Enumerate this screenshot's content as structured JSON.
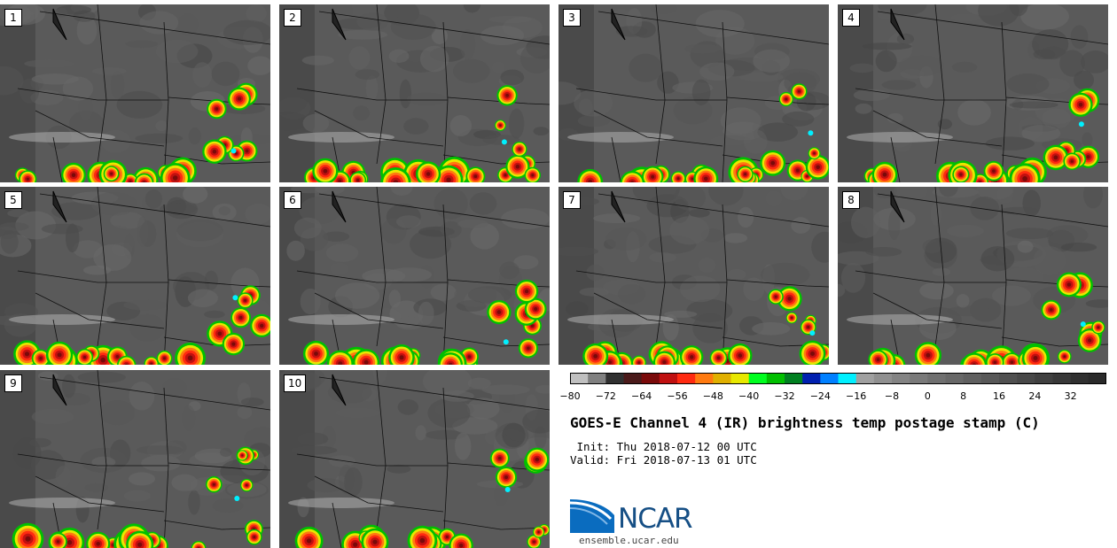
{
  "panels": [
    {
      "label": "1"
    },
    {
      "label": "2"
    },
    {
      "label": "3"
    },
    {
      "label": "4"
    },
    {
      "label": "5"
    },
    {
      "label": "6"
    },
    {
      "label": "7"
    },
    {
      "label": "8"
    },
    {
      "label": "9"
    },
    {
      "label": "10"
    }
  ],
  "colorbar": {
    "colors": [
      "#c0c0c0",
      "#808080",
      "#303030",
      "#4a1a1a",
      "#7a0a0a",
      "#c01010",
      "#ff2a10",
      "#ff7a10",
      "#e0b000",
      "#e8e800",
      "#00ff20",
      "#00c000",
      "#008020",
      "#0020b0",
      "#0080ff",
      "#00f0ff",
      "#a0a0a0",
      "#909090",
      "#848484",
      "#7a7a7a",
      "#707070",
      "#686868",
      "#606060",
      "#585858",
      "#505050",
      "#484848",
      "#404040",
      "#383838",
      "#303030",
      "#2a2a2a"
    ],
    "ticks": [
      "−80",
      "−72",
      "−64",
      "−56",
      "−48",
      "−40",
      "−32",
      "−24",
      "−16",
      "−8",
      "0",
      "8",
      "16",
      "24",
      "32"
    ]
  },
  "title": "GOES-E Channel 4 (IR) brightness temp postage stamp (C)",
  "init_line": " Init: Thu 2018-07-12 00 UTC",
  "valid_line": "Valid: Fri 2018-07-13 01 UTC",
  "logo": {
    "text": "NCAR",
    "url": "ensemble.ucar.edu",
    "color": "#164f85",
    "accent": "#0a6cbf"
  }
}
